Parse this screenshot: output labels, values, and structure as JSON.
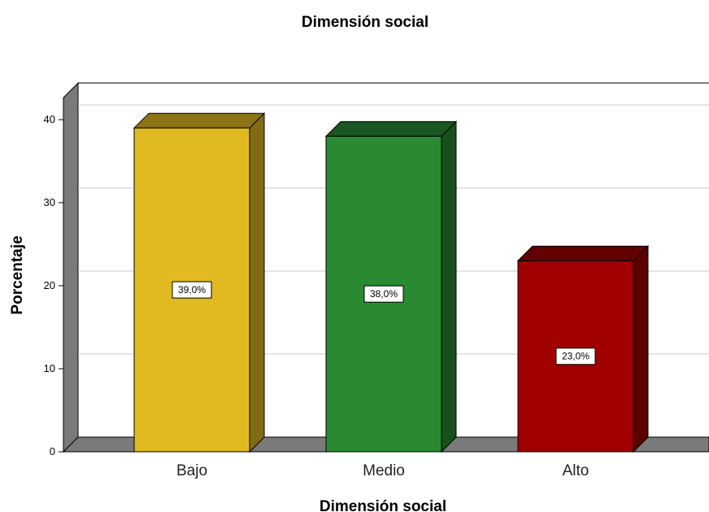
{
  "chart_data": {
    "type": "bar",
    "title": "Dimensión social",
    "xlabel": "Dimensión social",
    "ylabel": "Porcentaje",
    "categories": [
      "Bajo",
      "Medio",
      "Alto"
    ],
    "values": [
      39.0,
      38.0,
      23.0
    ],
    "data_labels": [
      "39,0%",
      "38,0%",
      "23,0%"
    ],
    "ylim": [
      0,
      40
    ],
    "yticks": [
      "0",
      "10",
      "20",
      "30",
      "40"
    ],
    "grid": true,
    "style": "3d",
    "colors": {
      "Bajo": "#e1b920",
      "Medio": "#2a8a32",
      "Alto": "#a00000"
    }
  }
}
